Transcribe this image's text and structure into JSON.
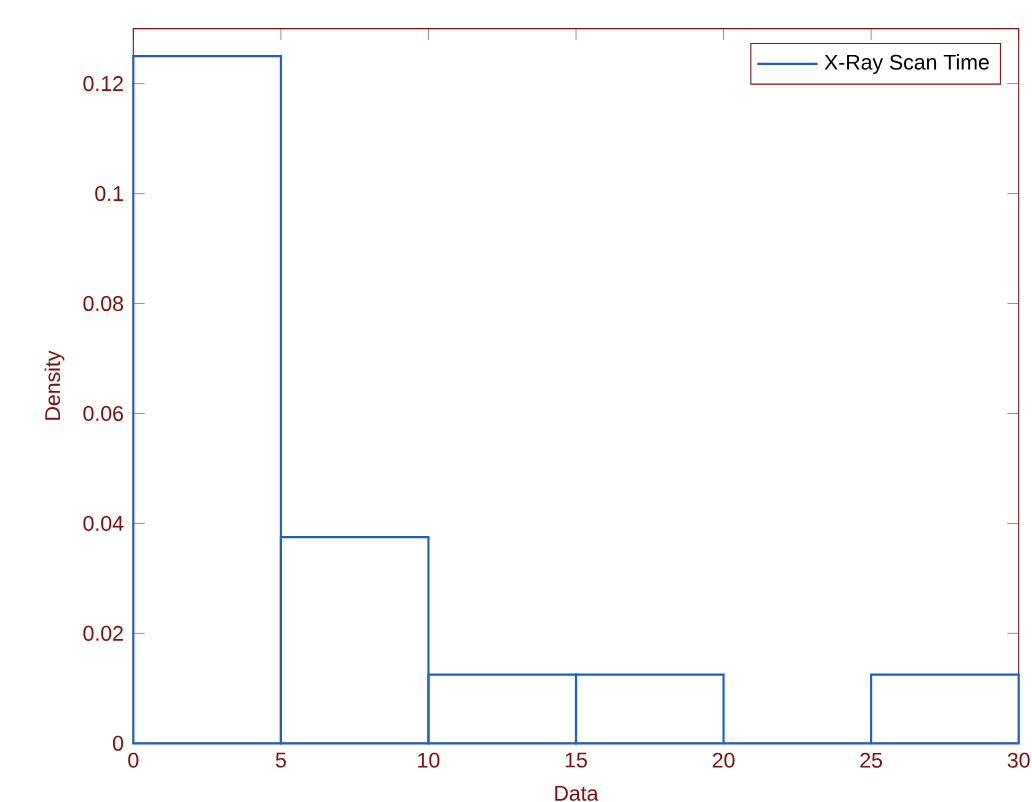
{
  "chart_data": {
    "type": "histogram",
    "xlabel": "Data",
    "ylabel": "Density",
    "bins": [
      0,
      5,
      10,
      15,
      20,
      25,
      30
    ],
    "series": [
      {
        "name": "X-Ray Scan Time",
        "color": "#1f5fbf",
        "values": [
          0.125,
          0.0375,
          0.0125,
          0.0125,
          0,
          0.0125
        ]
      }
    ],
    "xlim": [
      0,
      30
    ],
    "ylim": [
      0,
      0.13
    ],
    "xticks": [
      0,
      5,
      10,
      15,
      20,
      25,
      30
    ],
    "yticks": [
      0,
      0.02,
      0.04,
      0.06,
      0.08,
      0.1,
      0.12
    ],
    "legend": "top right",
    "grid": false
  }
}
